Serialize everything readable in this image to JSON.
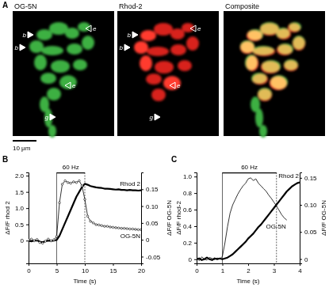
{
  "panel_a": {
    "label": "A",
    "scale_bar": "10 μm",
    "images": [
      {
        "title": "OG-5N",
        "markers": [
          "b",
          "b",
          "e",
          "e",
          "g"
        ]
      },
      {
        "title": "Rhod-2",
        "markers": [
          "b",
          "b",
          "e",
          "e",
          "g"
        ]
      },
      {
        "title": "Composite"
      }
    ]
  },
  "chart_data": [
    {
      "type": "line",
      "title": "B",
      "x_label": "Time (s)",
      "y_label": "ΔF/F rhod 2",
      "y2_label": "ΔF/F OG-5N",
      "x": [
        0,
        0.5,
        1,
        1.5,
        2,
        2.5,
        3,
        3.5,
        4,
        4.5,
        5,
        5.5,
        6,
        6.5,
        7,
        7.5,
        8,
        8.5,
        9,
        9.5,
        10,
        10.5,
        11,
        11.5,
        12,
        12.5,
        13,
        13.5,
        14,
        14.5,
        15,
        15.5,
        16,
        16.5,
        17,
        17.5,
        18,
        18.5,
        19,
        19.5,
        20
      ],
      "series": [
        {
          "name": "Rhod 2",
          "color": "#000000",
          "line_style": "thick",
          "values": [
            0,
            -0.02,
            0,
            0.01,
            -0.03,
            -0.05,
            -0.02,
            0,
            -0.01,
            0,
            0.02,
            0.15,
            0.35,
            0.55,
            0.75,
            0.95,
            1.15,
            1.35,
            1.5,
            1.65,
            1.75,
            1.72,
            1.68,
            1.66,
            1.64,
            1.63,
            1.62,
            1.6,
            1.6,
            1.59,
            1.58,
            1.57,
            1.58,
            1.56,
            1.56,
            1.55,
            1.56,
            1.55,
            1.55,
            1.54,
            1.55
          ]
        },
        {
          "name": "OG-5N",
          "color": "#000000",
          "line_style": "thin",
          "marker": "circle",
          "axis": "y2",
          "values": [
            0,
            0.002,
            -0.003,
            0.001,
            -0.008,
            -0.01,
            -0.004,
            0.002,
            -0.003,
            0,
            0.01,
            0.11,
            0.165,
            0.175,
            0.17,
            0.168,
            0.172,
            0.17,
            0.175,
            0.16,
            0.12,
            0.07,
            0.055,
            0.05,
            0.045,
            0.044,
            0.042,
            0.04,
            0.04,
            0.038,
            0.037,
            0.036,
            0.035,
            0.034,
            0.034,
            0.033,
            0.032,
            0.032,
            0.031,
            0.03,
            0.03
          ]
        }
      ],
      "xlim": [
        0,
        20
      ],
      "xticks": [
        0,
        5,
        10,
        15,
        20
      ],
      "ylim": [
        -0.7,
        2.1
      ],
      "yticks": [
        0,
        0.5,
        {
          "value": 1,
          "label": "1.0"
        },
        1.5,
        {
          "value": 2,
          "label": "2.0"
        }
      ],
      "y2lim": [
        -0.07,
        0.2
      ],
      "y2ticks": [
        -0.05,
        0,
        0.05,
        {
          "value": 0.1,
          "label": "0.10"
        },
        0.15
      ],
      "stimulus": {
        "label": "60 Hz",
        "start": 5,
        "end": 10
      }
    },
    {
      "type": "line",
      "title": "C",
      "x_label": "Time (s)",
      "y_label": "ΔF/F rhod-2",
      "y2_label": "ΔF/F OG-5N",
      "x": [
        0,
        0.1,
        0.2,
        0.3,
        0.4,
        0.5,
        0.6,
        0.7,
        0.8,
        0.9,
        1,
        1.1,
        1.2,
        1.3,
        1.4,
        1.5,
        1.6,
        1.7,
        1.8,
        1.9,
        2,
        2.1,
        2.2,
        2.3,
        2.4,
        2.5,
        2.6,
        2.7,
        2.8,
        2.9,
        3,
        3.1,
        3.2,
        3.3,
        3.4,
        3.5,
        3.6,
        3.7,
        3.8,
        3.9,
        4
      ],
      "series": [
        {
          "name": "Rhod 2",
          "color": "#000000",
          "line_style": "thick",
          "values": [
            0,
            0.01,
            -0.01,
            0,
            0.02,
            0,
            -0.01,
            0.01,
            0,
            0.01,
            0,
            0.01,
            0.02,
            0.04,
            0.06,
            0.09,
            0.12,
            0.15,
            0.18,
            0.21,
            0.25,
            0.28,
            0.31,
            0.35,
            0.39,
            0.42,
            0.46,
            0.5,
            0.54,
            0.58,
            0.62,
            0.66,
            0.7,
            0.74,
            0.78,
            0.82,
            0.85,
            0.88,
            0.9,
            0.92,
            0.93
          ]
        },
        {
          "name": "OG-5N",
          "color": "#000000",
          "line_style": "thin",
          "axis": "y2",
          "values": [
            0.002,
            -0.003,
            0.004,
            0,
            -0.002,
            0.003,
            0.001,
            -0.001,
            0.002,
            0,
            0.005,
            0.03,
            0.06,
            0.085,
            0.1,
            0.11,
            0.12,
            0.128,
            0.135,
            0.14,
            0.148,
            0.15,
            0.145,
            0.148,
            0.14,
            0.135,
            0.13,
            0.125,
            0.118,
            0.112,
            0.105,
            0.098,
            0.09,
            0.082,
            0.076,
            0.072,
            null,
            null,
            null,
            null,
            null
          ]
        }
      ],
      "xlim": [
        0,
        4
      ],
      "xticks": [
        0,
        1,
        2,
        3,
        4
      ],
      "ylim": [
        -0.05,
        1.05
      ],
      "yticks": [
        0,
        0.2,
        0.4,
        0.6,
        0.8,
        {
          "value": 1,
          "label": "1.0"
        }
      ],
      "y2lim": [
        -0.008,
        0.16
      ],
      "y2ticks": [
        0,
        0.05,
        {
          "value": 0.1,
          "label": "0.10"
        },
        0.15
      ],
      "stimulus": {
        "label": "60 Hz",
        "start": 1,
        "end": 3.1
      }
    }
  ]
}
